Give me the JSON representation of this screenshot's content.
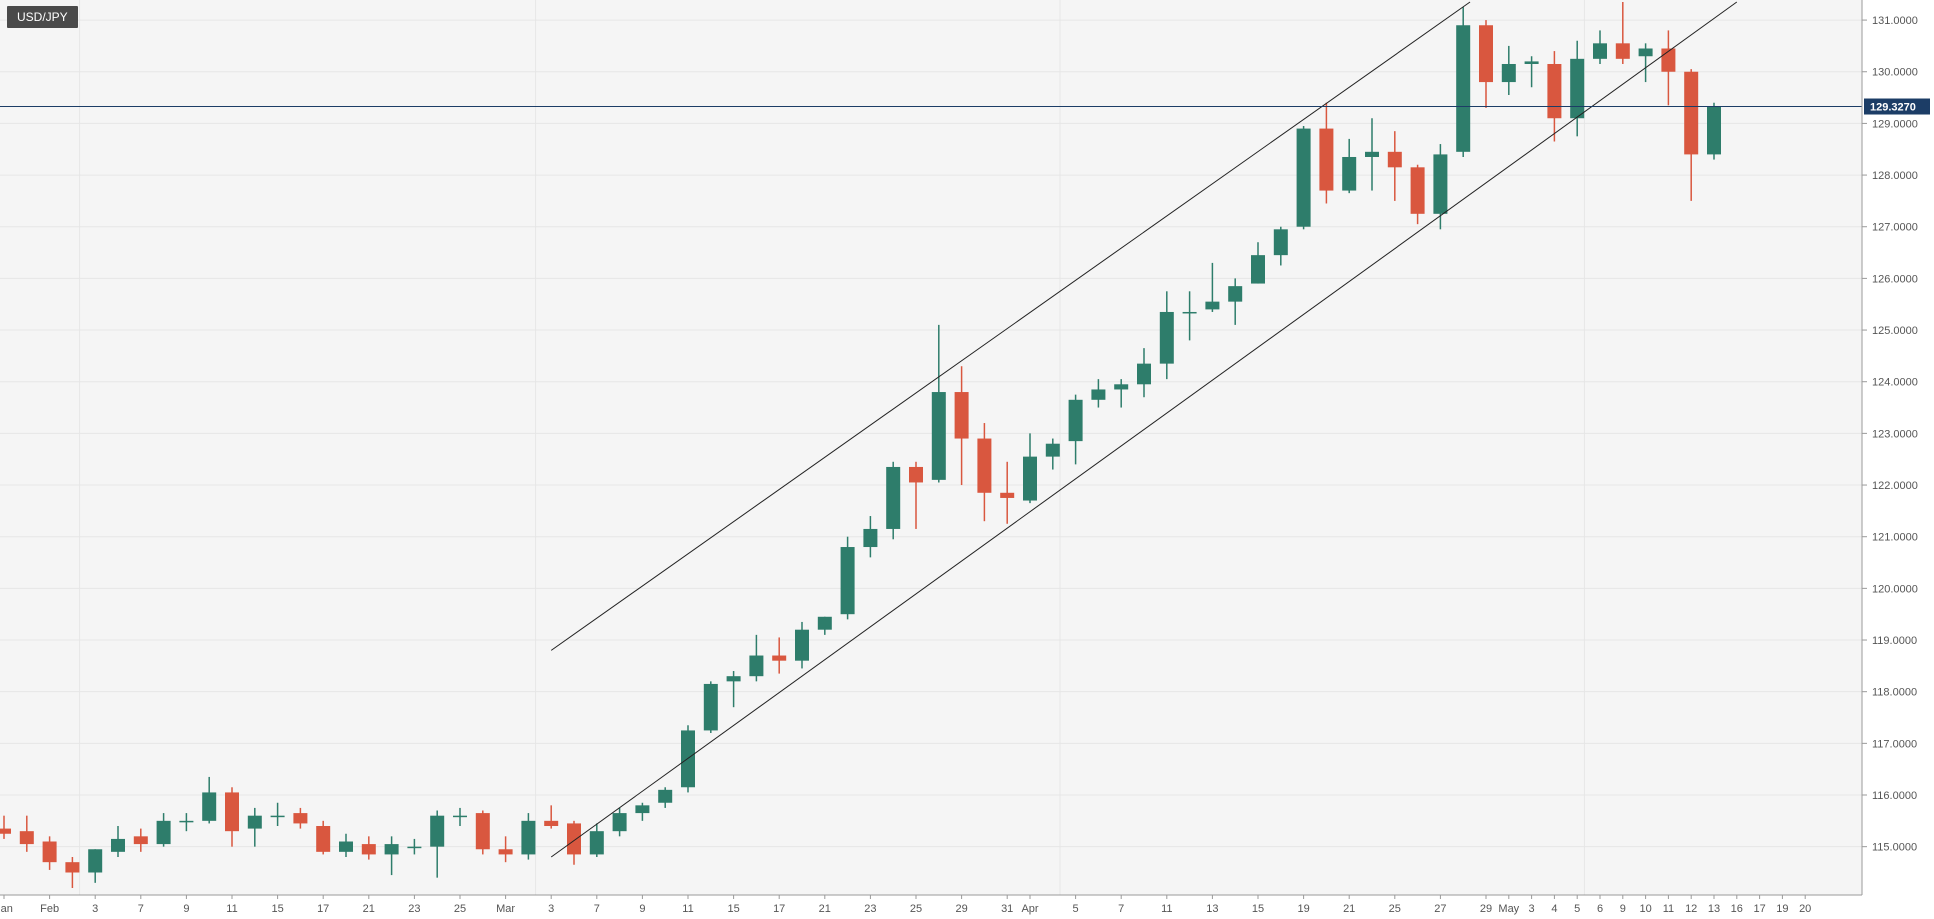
{
  "symbol": "USD/JPY",
  "colors": {
    "up": "#2e7d6b",
    "down": "#d9573f",
    "grid": "#e6e6e6",
    "price_line": "#1c3d66",
    "price_tag": "#1c3d66",
    "trendline": "#222222"
  },
  "chart_data": {
    "type": "candlestick",
    "title": "USD/JPY",
    "ylim": [
      114.2,
      131.35
    ],
    "y_ticks": [
      "115.0000",
      "116.0000",
      "117.0000",
      "118.0000",
      "119.0000",
      "120.0000",
      "121.0000",
      "122.0000",
      "123.0000",
      "124.0000",
      "125.0000",
      "126.0000",
      "127.0000",
      "128.0000",
      "129.0000",
      "130.0000",
      "131.0000"
    ],
    "x_ticks": [
      "Jan",
      "Feb",
      "3",
      "7",
      "9",
      "11",
      "15",
      "17",
      "21",
      "23",
      "25",
      "Mar",
      "3",
      "7",
      "9",
      "11",
      "15",
      "17",
      "21",
      "23",
      "25",
      "29",
      "31",
      "Apr",
      "5",
      "7",
      "11",
      "13",
      "15",
      "19",
      "21",
      "25",
      "27",
      "29",
      "May",
      "3",
      "4",
      "5",
      "6",
      "9",
      "10",
      "11",
      "12",
      "13",
      "16",
      "17",
      "19",
      "20"
    ],
    "current_price": "129.3270",
    "grid": true,
    "candles": [
      {
        "o": 115.35,
        "h": 115.6,
        "l": 115.15,
        "c": 115.25
      },
      {
        "o": 115.3,
        "h": 115.6,
        "l": 114.9,
        "c": 115.05
      },
      {
        "o": 115.1,
        "h": 115.2,
        "l": 114.55,
        "c": 114.7
      },
      {
        "o": 114.7,
        "h": 114.8,
        "l": 114.2,
        "c": 114.5
      },
      {
        "o": 114.5,
        "h": 114.95,
        "l": 114.3,
        "c": 114.95
      },
      {
        "o": 114.9,
        "h": 115.4,
        "l": 114.8,
        "c": 115.15
      },
      {
        "o": 115.2,
        "h": 115.35,
        "l": 114.9,
        "c": 115.05
      },
      {
        "o": 115.05,
        "h": 115.65,
        "l": 115.0,
        "c": 115.5
      },
      {
        "o": 115.5,
        "h": 115.65,
        "l": 115.3,
        "c": 115.5
      },
      {
        "o": 115.5,
        "h": 116.35,
        "l": 115.45,
        "c": 116.05
      },
      {
        "o": 116.05,
        "h": 116.15,
        "l": 115.0,
        "c": 115.3
      },
      {
        "o": 115.35,
        "h": 115.75,
        "l": 115.0,
        "c": 115.6
      },
      {
        "o": 115.6,
        "h": 115.85,
        "l": 115.4,
        "c": 115.6
      },
      {
        "o": 115.65,
        "h": 115.75,
        "l": 115.35,
        "c": 115.45
      },
      {
        "o": 115.4,
        "h": 115.5,
        "l": 114.85,
        "c": 114.9
      },
      {
        "o": 114.9,
        "h": 115.25,
        "l": 114.8,
        "c": 115.1
      },
      {
        "o": 115.05,
        "h": 115.2,
        "l": 114.75,
        "c": 114.85
      },
      {
        "o": 114.85,
        "h": 115.2,
        "l": 114.45,
        "c": 115.05
      },
      {
        "o": 115.0,
        "h": 115.15,
        "l": 114.85,
        "c": 115.0
      },
      {
        "o": 115.0,
        "h": 115.7,
        "l": 114.4,
        "c": 115.6
      },
      {
        "o": 115.6,
        "h": 115.75,
        "l": 115.4,
        "c": 115.6
      },
      {
        "o": 115.65,
        "h": 115.7,
        "l": 114.85,
        "c": 114.95
      },
      {
        "o": 114.95,
        "h": 115.2,
        "l": 114.7,
        "c": 114.85
      },
      {
        "o": 114.85,
        "h": 115.65,
        "l": 114.75,
        "c": 115.5
      },
      {
        "o": 115.5,
        "h": 115.8,
        "l": 115.35,
        "c": 115.4
      },
      {
        "o": 115.45,
        "h": 115.5,
        "l": 114.65,
        "c": 114.85
      },
      {
        "o": 114.85,
        "h": 115.45,
        "l": 114.8,
        "c": 115.3
      },
      {
        "o": 115.3,
        "h": 115.75,
        "l": 115.2,
        "c": 115.65
      },
      {
        "o": 115.65,
        "h": 115.85,
        "l": 115.5,
        "c": 115.8
      },
      {
        "o": 115.85,
        "h": 116.15,
        "l": 115.75,
        "c": 116.1
      },
      {
        "o": 116.15,
        "h": 117.35,
        "l": 116.05,
        "c": 117.25
      },
      {
        "o": 117.25,
        "h": 118.2,
        "l": 117.2,
        "c": 118.15
      },
      {
        "o": 118.2,
        "h": 118.4,
        "l": 117.7,
        "c": 118.3
      },
      {
        "o": 118.3,
        "h": 119.1,
        "l": 118.2,
        "c": 118.7
      },
      {
        "o": 118.7,
        "h": 119.05,
        "l": 118.35,
        "c": 118.6
      },
      {
        "o": 118.6,
        "h": 119.35,
        "l": 118.45,
        "c": 119.2
      },
      {
        "o": 119.2,
        "h": 119.45,
        "l": 119.1,
        "c": 119.45
      },
      {
        "o": 119.5,
        "h": 121.0,
        "l": 119.4,
        "c": 120.8
      },
      {
        "o": 120.8,
        "h": 121.4,
        "l": 120.6,
        "c": 121.15
      },
      {
        "o": 121.15,
        "h": 122.45,
        "l": 120.95,
        "c": 122.35
      },
      {
        "o": 122.35,
        "h": 122.45,
        "l": 121.15,
        "c": 122.05
      },
      {
        "o": 122.1,
        "h": 125.1,
        "l": 122.05,
        "c": 123.8
      },
      {
        "o": 123.8,
        "h": 124.3,
        "l": 122.0,
        "c": 122.9
      },
      {
        "o": 122.9,
        "h": 123.2,
        "l": 121.3,
        "c": 121.85
      },
      {
        "o": 121.85,
        "h": 122.45,
        "l": 121.25,
        "c": 121.75
      },
      {
        "o": 121.7,
        "h": 123.0,
        "l": 121.65,
        "c": 122.55
      },
      {
        "o": 122.55,
        "h": 122.9,
        "l": 122.3,
        "c": 122.8
      },
      {
        "o": 122.85,
        "h": 123.75,
        "l": 122.4,
        "c": 123.65
      },
      {
        "o": 123.65,
        "h": 124.05,
        "l": 123.5,
        "c": 123.85
      },
      {
        "o": 123.85,
        "h": 124.05,
        "l": 123.5,
        "c": 123.95
      },
      {
        "o": 123.95,
        "h": 124.65,
        "l": 123.7,
        "c": 124.35
      },
      {
        "o": 124.35,
        "h": 125.75,
        "l": 124.05,
        "c": 125.35
      },
      {
        "o": 125.35,
        "h": 125.75,
        "l": 124.8,
        "c": 125.35
      },
      {
        "o": 125.4,
        "h": 126.3,
        "l": 125.35,
        "c": 125.55
      },
      {
        "o": 125.55,
        "h": 126.0,
        "l": 125.1,
        "c": 125.85
      },
      {
        "o": 125.9,
        "h": 126.7,
        "l": 125.9,
        "c": 126.45
      },
      {
        "o": 126.45,
        "h": 127.0,
        "l": 126.25,
        "c": 126.95
      },
      {
        "o": 127.0,
        "h": 128.95,
        "l": 126.95,
        "c": 128.9
      },
      {
        "o": 128.9,
        "h": 129.4,
        "l": 127.45,
        "c": 127.7
      },
      {
        "o": 127.7,
        "h": 128.7,
        "l": 127.65,
        "c": 128.35
      },
      {
        "o": 128.35,
        "h": 129.1,
        "l": 127.7,
        "c": 128.45
      },
      {
        "o": 128.45,
        "h": 128.85,
        "l": 127.5,
        "c": 128.15
      },
      {
        "o": 128.15,
        "h": 128.2,
        "l": 127.05,
        "c": 127.25
      },
      {
        "o": 127.25,
        "h": 128.6,
        "l": 126.95,
        "c": 128.4
      },
      {
        "o": 128.45,
        "h": 131.25,
        "l": 128.35,
        "c": 130.9
      },
      {
        "o": 130.9,
        "h": 131.0,
        "l": 129.3,
        "c": 129.8
      },
      {
        "o": 129.8,
        "h": 130.5,
        "l": 129.55,
        "c": 130.15
      },
      {
        "o": 130.15,
        "h": 130.3,
        "l": 129.7,
        "c": 130.2
      },
      {
        "o": 130.15,
        "h": 130.4,
        "l": 128.65,
        "c": 129.1
      },
      {
        "o": 129.1,
        "h": 130.6,
        "l": 128.75,
        "c": 130.25
      },
      {
        "o": 130.25,
        "h": 130.8,
        "l": 130.15,
        "c": 130.55
      },
      {
        "o": 130.55,
        "h": 131.35,
        "l": 130.15,
        "c": 130.25
      },
      {
        "o": 130.3,
        "h": 130.55,
        "l": 129.8,
        "c": 130.45
      },
      {
        "o": 130.45,
        "h": 130.8,
        "l": 129.35,
        "c": 130.0
      },
      {
        "o": 130.0,
        "h": 130.05,
        "l": 127.5,
        "c": 128.4
      },
      {
        "o": 128.4,
        "h": 129.4,
        "l": 128.3,
        "c": 129.33
      }
    ],
    "trendlines": [
      {
        "x1": 24.0,
        "y1": 118.8,
        "x2": 64.3,
        "y2": 131.35
      },
      {
        "x1": 24.0,
        "y1": 114.8,
        "x2": 76.0,
        "y2": 131.35
      }
    ]
  }
}
